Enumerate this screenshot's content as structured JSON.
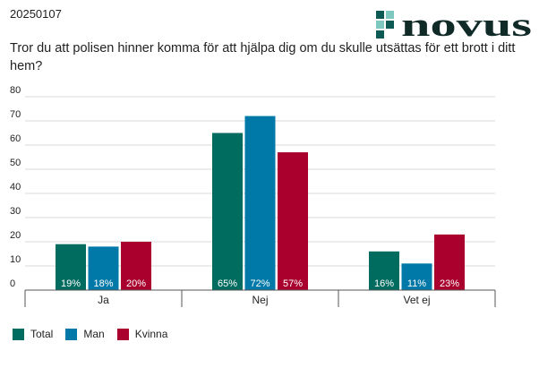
{
  "header": {
    "date": "20250107",
    "logo_text": "NOVUS"
  },
  "question": "Tror du att polisen hinner komma för att hjälpa dig om du skulle utsättas för ett brott i ditt hem?",
  "colors": {
    "total": "#006b5f",
    "man": "#0079a8",
    "kvinna": "#a9002d"
  },
  "chart_data": {
    "type": "bar",
    "categories": [
      "Ja",
      "Nej",
      "Vet ej"
    ],
    "series": [
      {
        "name": "Total",
        "values": [
          19,
          65,
          16
        ],
        "labels": [
          "19%",
          "65%",
          "16%"
        ],
        "color": "#006b5f"
      },
      {
        "name": "Man",
        "values": [
          18,
          72,
          11
        ],
        "labels": [
          "18%",
          "72%",
          "11%"
        ],
        "color": "#0079a8"
      },
      {
        "name": "Kvinna",
        "values": [
          20,
          57,
          23
        ],
        "labels": [
          "20%",
          "57%",
          "23%"
        ],
        "color": "#a9002d"
      }
    ],
    "yticks": [
      "0",
      "10",
      "20",
      "30",
      "40",
      "50",
      "60",
      "70",
      "80"
    ],
    "ylim": [
      0,
      80
    ],
    "grid": true,
    "legend": "bottom-left",
    "xlabel": "",
    "ylabel": ""
  }
}
